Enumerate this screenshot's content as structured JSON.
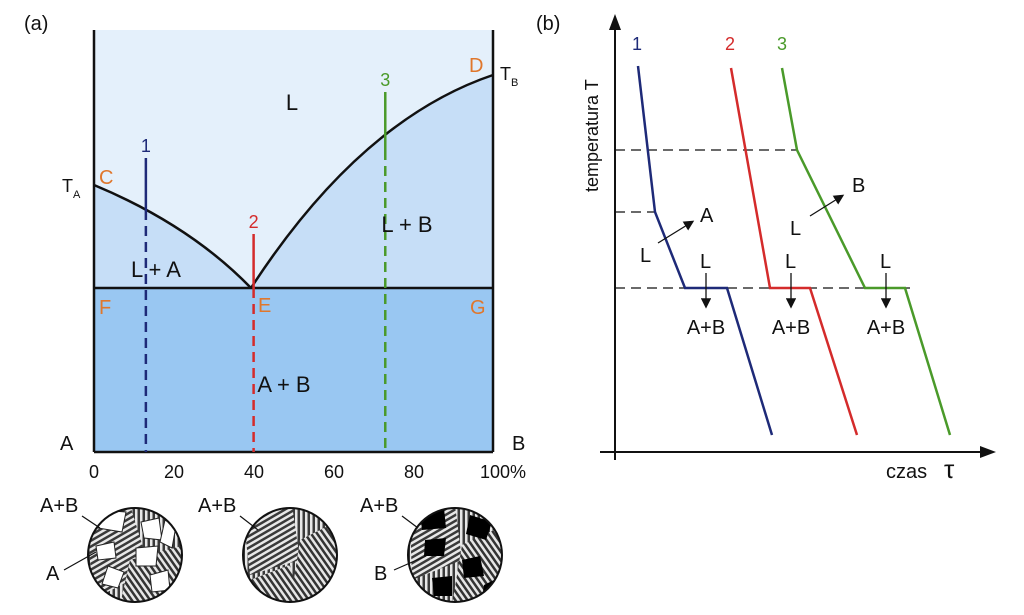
{
  "panel_a": {
    "label": "(a)",
    "regions": {
      "liquid": "L",
      "l_plus_a": "L + A",
      "l_plus_b": "L + B",
      "solid": "A + B"
    },
    "points": {
      "C": "C",
      "D": "D",
      "E": "E",
      "F": "F",
      "G": "G"
    },
    "ta_main": "T",
    "ta_sub": "A",
    "tb_main": "T",
    "tb_sub": "B",
    "component_left": "A",
    "component_right": "B",
    "x_ticks": [
      "0",
      "20",
      "40",
      "60",
      "80",
      "100%"
    ],
    "alloys": [
      {
        "label": "1",
        "composition": 13,
        "color": "#1e2a78"
      },
      {
        "label": "2",
        "composition": 40,
        "color": "#d42b2b"
      },
      {
        "label": "3",
        "composition": 73,
        "color": "#4a9a2a"
      }
    ],
    "colors": {
      "liquid_bg": "#e4f0fb",
      "two_phase_bg": "#c6def7",
      "solid_bg": "#99c7f2"
    }
  },
  "panel_b": {
    "label": "(b)",
    "y_axis_label": "temperatura T",
    "x_axis_label": "czas",
    "x_axis_symbol": "τ",
    "curve_labels": [
      "1",
      "2",
      "3"
    ],
    "annotations": {
      "l_to_a_L": "L",
      "l_to_a_A": "A",
      "l_to_b_L": "L",
      "l_to_b_B": "B",
      "eutectic_L": "L",
      "eutectic_AB": "A+B"
    }
  },
  "microstructures": [
    {
      "top_label": "A+B",
      "side_label": "A"
    },
    {
      "top_label": "A+B"
    },
    {
      "top_label": "A+B",
      "side_label": "B"
    }
  ]
}
